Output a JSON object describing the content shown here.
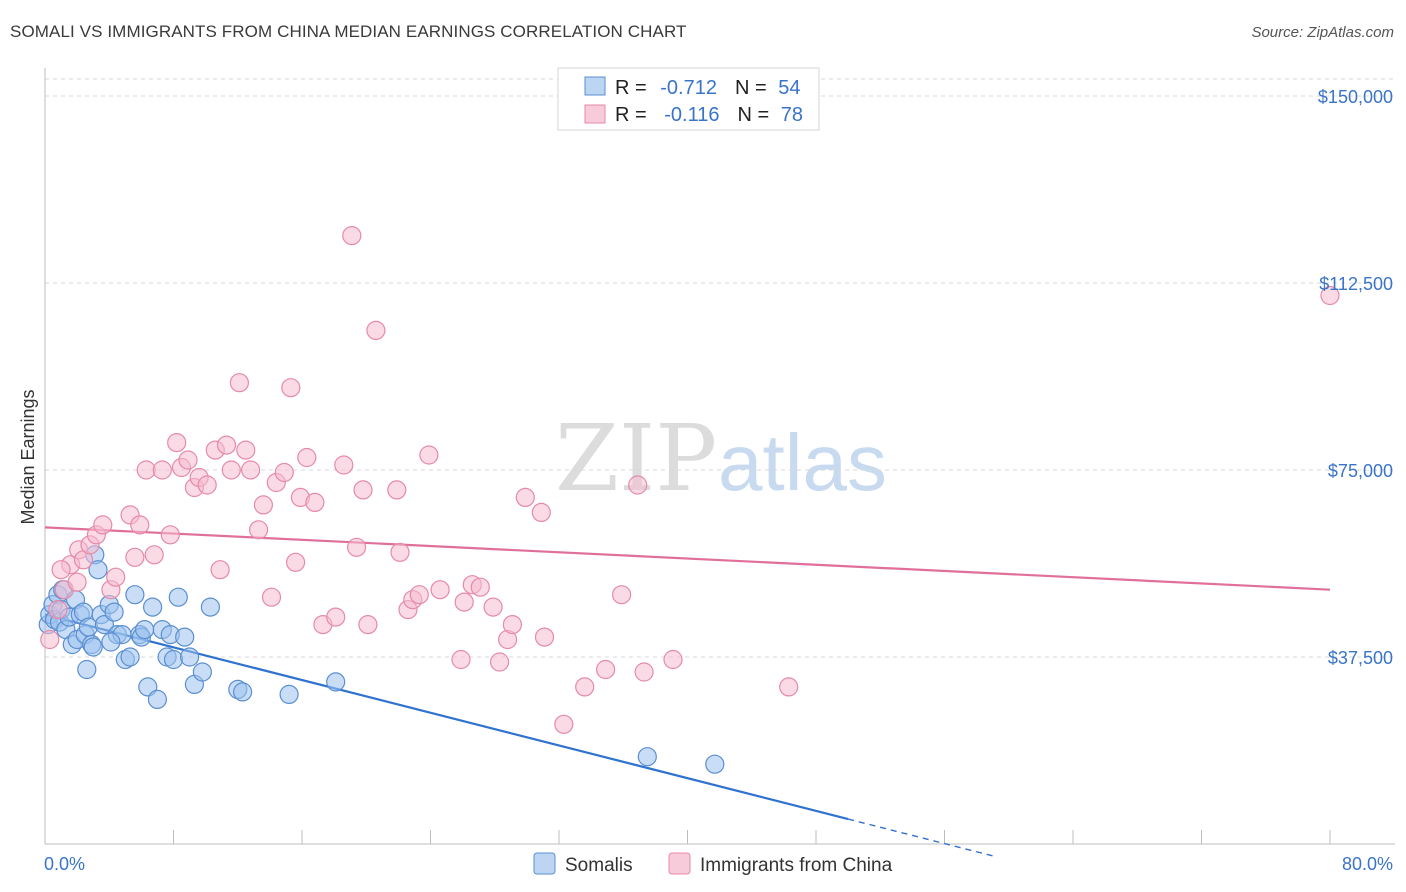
{
  "title": "SOMALI VS IMMIGRANTS FROM CHINA MEDIAN EARNINGS CORRELATION CHART",
  "source": "Source: ZipAtlas.com",
  "watermark": {
    "zip": "ZIP",
    "atlas": "atlas"
  },
  "colors": {
    "blue_fill": "#9dc3ef",
    "blue_stroke": "#5b8fd1",
    "blue_line": "#2f72cf",
    "pink_fill": "#f6bccf",
    "pink_stroke": "#e58aa9",
    "pink_line": "#e0709a",
    "grid": "#d9d9d9",
    "accent_text": "#3a74c8"
  },
  "legend": {
    "rows": [
      {
        "r_label": "R = ",
        "r_value": "-0.712",
        "n_label": "N = ",
        "n_value": "54"
      },
      {
        "r_label": "R = ",
        "r_value": "-0.116",
        "n_label": "N = ",
        "n_value": "78"
      }
    ]
  },
  "bottom_legend": [
    "Somalis",
    "Immigrants from China"
  ],
  "chart_data": {
    "type": "scatter",
    "ylabel": "Median Earnings",
    "xlim": [
      0,
      80
    ],
    "ylim": [
      0,
      150000
    ],
    "x_tick_labels": [
      "0.0%",
      "80.0%"
    ],
    "y_tick_labels": [
      "$150,000",
      "$112,500",
      "$75,000",
      "$37,500"
    ],
    "y_tick_values": [
      150000,
      112500,
      75000,
      37500
    ],
    "grid": true,
    "series": [
      {
        "name": "Somalis",
        "trend": {
          "x0": 0,
          "y0": 46000,
          "x1": 50,
          "y1": 5000,
          "dash_to_x": 59
        },
        "points": [
          [
            0.2,
            44000
          ],
          [
            0.3,
            46000
          ],
          [
            0.5,
            48000
          ],
          [
            0.6,
            45000
          ],
          [
            0.8,
            50000
          ],
          [
            0.9,
            44500
          ],
          [
            1.0,
            47000
          ],
          [
            1.1,
            51000
          ],
          [
            1.3,
            43000
          ],
          [
            1.5,
            45500
          ],
          [
            1.7,
            40000
          ],
          [
            1.9,
            49000
          ],
          [
            2.0,
            41000
          ],
          [
            2.2,
            46000
          ],
          [
            2.4,
            46500
          ],
          [
            2.5,
            42000
          ],
          [
            2.7,
            43500
          ],
          [
            2.9,
            40000
          ],
          [
            3.1,
            58000
          ],
          [
            3.3,
            55000
          ],
          [
            3.5,
            46000
          ],
          [
            3.7,
            44000
          ],
          [
            4.0,
            48000
          ],
          [
            4.3,
            46500
          ],
          [
            4.5,
            42000
          ],
          [
            4.8,
            42000
          ],
          [
            5.0,
            37000
          ],
          [
            5.3,
            37500
          ],
          [
            5.6,
            50000
          ],
          [
            5.9,
            42000
          ],
          [
            6.0,
            41500
          ],
          [
            6.4,
            31500
          ],
          [
            6.7,
            47500
          ],
          [
            7.0,
            29000
          ],
          [
            7.3,
            43000
          ],
          [
            7.6,
            37500
          ],
          [
            7.8,
            42000
          ],
          [
            8.0,
            37000
          ],
          [
            8.3,
            49500
          ],
          [
            8.7,
            41500
          ],
          [
            9.0,
            37500
          ],
          [
            9.3,
            32000
          ],
          [
            9.8,
            34500
          ],
          [
            10.3,
            47500
          ],
          [
            12.0,
            31000
          ],
          [
            12.3,
            30500
          ],
          [
            15.2,
            30000
          ],
          [
            18.1,
            32500
          ],
          [
            37.5,
            17500
          ],
          [
            41.7,
            16000
          ],
          [
            2.6,
            35000
          ],
          [
            4.1,
            40500
          ],
          [
            6.2,
            43000
          ],
          [
            3.0,
            39500
          ]
        ]
      },
      {
        "name": "Immigrants from China",
        "trend": {
          "x0": 0,
          "y0": 63500,
          "x1": 80,
          "y1": 51000
        },
        "points": [
          [
            0.3,
            41000
          ],
          [
            0.8,
            47000
          ],
          [
            1.2,
            51000
          ],
          [
            1.6,
            56000
          ],
          [
            2.1,
            59000
          ],
          [
            2.4,
            57000
          ],
          [
            2.8,
            60000
          ],
          [
            3.2,
            62000
          ],
          [
            3.6,
            64000
          ],
          [
            4.1,
            51000
          ],
          [
            4.4,
            53500
          ],
          [
            5.3,
            66000
          ],
          [
            5.6,
            57500
          ],
          [
            5.9,
            64000
          ],
          [
            6.3,
            75000
          ],
          [
            6.8,
            58000
          ],
          [
            7.3,
            75000
          ],
          [
            7.8,
            62000
          ],
          [
            8.2,
            80500
          ],
          [
            8.5,
            75500
          ],
          [
            8.9,
            77000
          ],
          [
            9.3,
            71500
          ],
          [
            9.6,
            73500
          ],
          [
            10.1,
            72000
          ],
          [
            10.6,
            79000
          ],
          [
            10.9,
            55000
          ],
          [
            11.3,
            80000
          ],
          [
            11.6,
            75000
          ],
          [
            12.1,
            92500
          ],
          [
            12.5,
            79000
          ],
          [
            12.8,
            75000
          ],
          [
            13.3,
            63000
          ],
          [
            13.6,
            68000
          ],
          [
            14.1,
            49500
          ],
          [
            14.4,
            72500
          ],
          [
            14.9,
            74500
          ],
          [
            15.3,
            91500
          ],
          [
            15.6,
            56500
          ],
          [
            15.9,
            69500
          ],
          [
            16.3,
            77500
          ],
          [
            16.8,
            68500
          ],
          [
            17.3,
            44000
          ],
          [
            18.1,
            45500
          ],
          [
            18.6,
            76000
          ],
          [
            19.1,
            122000
          ],
          [
            19.4,
            59500
          ],
          [
            19.8,
            71000
          ],
          [
            20.1,
            44000
          ],
          [
            20.6,
            103000
          ],
          [
            21.9,
            71000
          ],
          [
            22.1,
            58500
          ],
          [
            22.6,
            47000
          ],
          [
            22.9,
            49000
          ],
          [
            23.3,
            50000
          ],
          [
            23.9,
            78000
          ],
          [
            24.6,
            51000
          ],
          [
            25.9,
            37000
          ],
          [
            26.1,
            48500
          ],
          [
            26.6,
            52000
          ],
          [
            27.1,
            51500
          ],
          [
            27.9,
            47500
          ],
          [
            28.3,
            36500
          ],
          [
            28.8,
            41000
          ],
          [
            29.1,
            44000
          ],
          [
            29.9,
            69500
          ],
          [
            30.9,
            66500
          ],
          [
            31.1,
            41500
          ],
          [
            32.3,
            24000
          ],
          [
            33.6,
            31500
          ],
          [
            34.9,
            35000
          ],
          [
            35.9,
            50000
          ],
          [
            36.9,
            72000
          ],
          [
            37.3,
            34500
          ],
          [
            39.1,
            37000
          ],
          [
            46.3,
            31500
          ],
          [
            80.0,
            110000
          ],
          [
            1.0,
            55000
          ],
          [
            2.0,
            52500
          ]
        ]
      }
    ]
  }
}
